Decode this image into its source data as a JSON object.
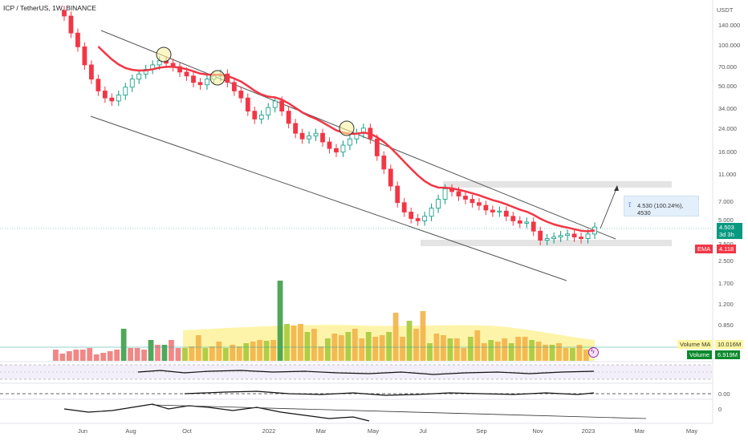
{
  "header": {
    "symbol": "ICP / TetherUS, 1W, BINANCE"
  },
  "price_axis": {
    "currency": "USDT",
    "ticks": [
      "140.000",
      "100.000",
      "70.000",
      "50.000",
      "34.000",
      "24.000",
      "16.000",
      "11.000",
      "7.000",
      "5.000",
      "3.500",
      "2.500",
      "1.700",
      "1.200",
      "0.850"
    ]
  },
  "last_price": {
    "value": "4.503",
    "countdown": "3d 3h",
    "color": "#089981"
  },
  "ema": {
    "label": "EMA",
    "value": "4.118",
    "color": "#f23645"
  },
  "volume": {
    "ma_label": "Volume MA",
    "ma_value": "10.016M",
    "label": "Volume",
    "value": "6.919M"
  },
  "measure": {
    "text": "4.530 (100.24%), 4530"
  },
  "oscillator_axis": {
    "ticks": [
      "0.00",
      "0"
    ]
  },
  "time_axis": {
    "ticks": [
      "Jun",
      "Aug",
      "Oct",
      "2022",
      "Mar",
      "May",
      "Jul",
      "Sep",
      "Nov",
      "2023",
      "Mar",
      "May"
    ]
  },
  "chart_data": {
    "type": "candlestick",
    "title": "ICP / TetherUS, 1W, BINANCE",
    "ylabel": "USDT",
    "y_scale": "log",
    "ylim": [
      0.85,
      160
    ],
    "x_labels": [
      "Jun",
      "Aug",
      "Oct",
      "2022",
      "Mar",
      "May",
      "Jul",
      "Sep",
      "Nov",
      "2023",
      "Mar",
      "May"
    ],
    "candles_close_approx": [
      160,
      120,
      95,
      70,
      55,
      45,
      40,
      38,
      42,
      48,
      55,
      60,
      65,
      70,
      75,
      72,
      68,
      62,
      58,
      52,
      50,
      55,
      58,
      60,
      52,
      45,
      40,
      32,
      28,
      30,
      34,
      38,
      32,
      26,
      22,
      20,
      21,
      22,
      19,
      17,
      16,
      18,
      20,
      22,
      24,
      20,
      15,
      12,
      9,
      6.8,
      5.8,
      5.2,
      5.0,
      5.4,
      6.2,
      7.2,
      8.6,
      8.2,
      7.6,
      7.2,
      6.8,
      6.5,
      6.0,
      5.8,
      5.9,
      5.4,
      5.0,
      4.8,
      4.9,
      4.2,
      3.6,
      3.7,
      3.8,
      3.9,
      4.0,
      3.8,
      3.7,
      4.0,
      4.5
    ],
    "ema_value": 4.118,
    "last_price": 4.503
  },
  "colors": {
    "up": "#089981",
    "down": "#f23645",
    "vol_up": "#26a69a",
    "vol_down": "#ef5350",
    "ema": "#f23645",
    "channel": "#555555",
    "highlight": "#fbf1a1"
  }
}
